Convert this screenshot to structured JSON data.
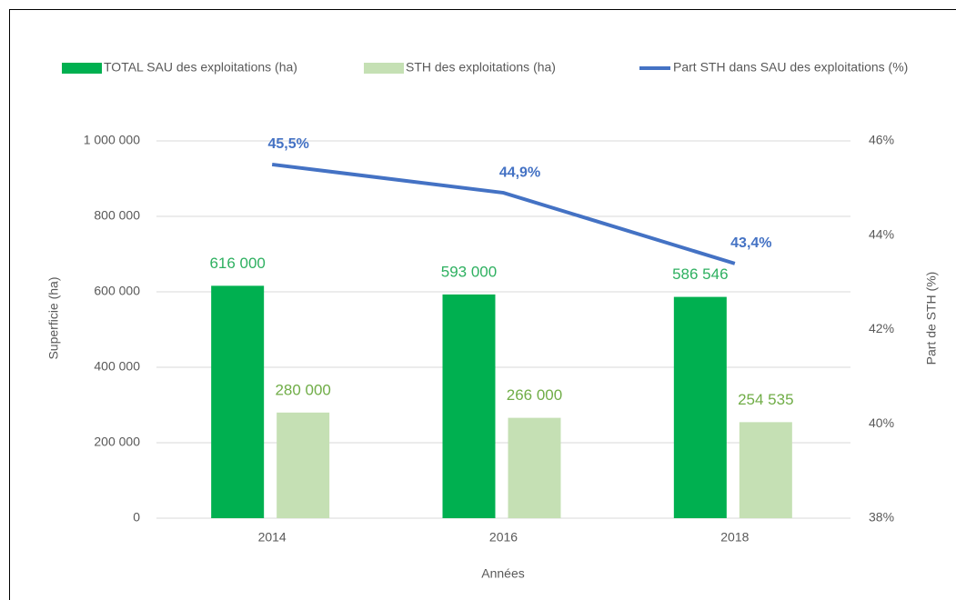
{
  "chart_data": {
    "type": "bar_line",
    "categories": [
      "2014",
      "2016",
      "2018"
    ],
    "series": [
      {
        "name": "TOTAL SAU des exploitations (ha)",
        "color": "#00b050",
        "label_color": "#2eb060",
        "values": [
          616000,
          593000,
          586546
        ],
        "value_labels": [
          "616 000",
          "593 000",
          "586 546"
        ]
      },
      {
        "name": "STH des exploitations (ha)",
        "color": "#c5e0b4",
        "label_color": "#70ad47",
        "values": [
          280000,
          266000,
          254535
        ],
        "value_labels": [
          "280 000",
          "266 000",
          "254 535"
        ]
      },
      {
        "name": "Part STH dans SAU des exploitations (%)",
        "type": "line",
        "axis": "y2",
        "color": "#4472c4",
        "values": [
          45.5,
          44.9,
          43.4
        ],
        "value_labels": [
          "45,5%",
          "44,9%",
          "43,4%"
        ]
      }
    ],
    "ylabel": "Superficie (ha)",
    "y2label": "Part de STH (%)",
    "xlabel": "Années",
    "ylim": [
      0,
      1000000
    ],
    "yticks": [
      0,
      {
        "value": 200000,
        "label": "200 000"
      },
      {
        "value": 400000,
        "label": "400 000"
      },
      {
        "value": 600000,
        "label": "600 000"
      },
      {
        "value": 800000,
        "label": "800 000"
      },
      {
        "value": 1000000,
        "label": "1 000 000"
      }
    ],
    "y2lim": [
      38,
      46
    ],
    "y2ticks": [
      {
        "value": 38,
        "label": "38%"
      },
      {
        "value": 40,
        "label": "40%"
      },
      {
        "value": 42,
        "label": "42%"
      },
      {
        "value": 44,
        "label": "44%"
      },
      {
        "value": 46,
        "label": "46%"
      }
    ],
    "grid": true,
    "legend": "top"
  }
}
